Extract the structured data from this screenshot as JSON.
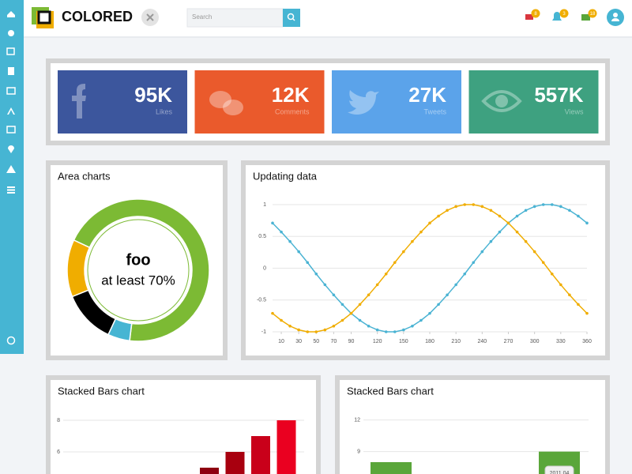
{
  "header": {
    "brand": "COLORED",
    "search_placeholder": "Search",
    "badges": [
      "8",
      "3",
      "18"
    ]
  },
  "stats": [
    {
      "value": "95K",
      "label": "Likes",
      "color": "#3c569d"
    },
    {
      "value": "12K",
      "label": "Comments",
      "color": "#ea5a2c"
    },
    {
      "value": "27K",
      "label": "Tweets",
      "color": "#5ba3ea"
    },
    {
      "value": "557K",
      "label": "Views",
      "color": "#3ea180"
    }
  ],
  "chart_data": [
    {
      "type": "donut",
      "title": "Area charts",
      "center_text": "foo",
      "center_subtext": "at least 70%",
      "values": [
        70,
        5,
        12,
        13
      ],
      "colors": [
        "#7cba34",
        "#46b5d3",
        "#000000",
        "#f0ad00"
      ]
    },
    {
      "type": "line",
      "title": "Updating data",
      "x": [
        0,
        10,
        20,
        30,
        40,
        50,
        60,
        70,
        80,
        90,
        100,
        110,
        120,
        130,
        140,
        150,
        160,
        170,
        180,
        190,
        200,
        210,
        220,
        230,
        240,
        250,
        260,
        270,
        280,
        290,
        300,
        310,
        320,
        330,
        340,
        350,
        360
      ],
      "xlim": [
        0,
        360
      ],
      "xticks": [
        10,
        30,
        50,
        70,
        90,
        120,
        150,
        180,
        210,
        240,
        270,
        300,
        330,
        360
      ],
      "ylim": [
        -1,
        1
      ],
      "yticks": [
        1,
        0.5,
        0,
        -0.5,
        -1
      ],
      "grid": true,
      "series": [
        {
          "color": "#4ab3d3",
          "values": [
            0.71,
            0.57,
            0.42,
            0.26,
            0.09,
            -0.09,
            -0.26,
            -0.42,
            -0.57,
            -0.71,
            -0.82,
            -0.91,
            -0.97,
            -1.0,
            -1.0,
            -0.97,
            -0.91,
            -0.82,
            -0.71,
            -0.57,
            -0.42,
            -0.26,
            -0.09,
            0.09,
            0.26,
            0.42,
            0.57,
            0.71,
            0.82,
            0.91,
            0.97,
            1.0,
            1.0,
            0.97,
            0.91,
            0.82,
            0.71
          ]
        },
        {
          "color": "#f0ad00",
          "values": [
            -0.71,
            -0.82,
            -0.91,
            -0.97,
            -1.0,
            -1.0,
            -0.97,
            -0.91,
            -0.82,
            -0.71,
            -0.57,
            -0.42,
            -0.26,
            -0.09,
            0.09,
            0.26,
            0.42,
            0.57,
            0.71,
            0.82,
            0.91,
            0.97,
            1.0,
            1.0,
            0.97,
            0.91,
            0.82,
            0.71,
            0.57,
            0.42,
            0.26,
            0.09,
            -0.09,
            -0.26,
            -0.42,
            -0.57,
            -0.71
          ]
        }
      ]
    },
    {
      "type": "bar",
      "title": "Stacked Bars chart",
      "values": [
        5,
        6,
        7,
        8
      ],
      "colors": [
        "#8e0010",
        "#a8000f",
        "#c9001a",
        "#ea0020"
      ],
      "ylim": [
        4.5,
        8.5
      ],
      "yticks": [
        6,
        8
      ],
      "grid": true
    },
    {
      "type": "bar",
      "title": "Stacked Bars chart",
      "values": [
        8,
        9
      ],
      "color": "#5aa63a",
      "ylim": [
        6.8,
        12.8
      ],
      "yticks": [
        9,
        12
      ],
      "grid": true,
      "annotation": "2011 04"
    }
  ]
}
